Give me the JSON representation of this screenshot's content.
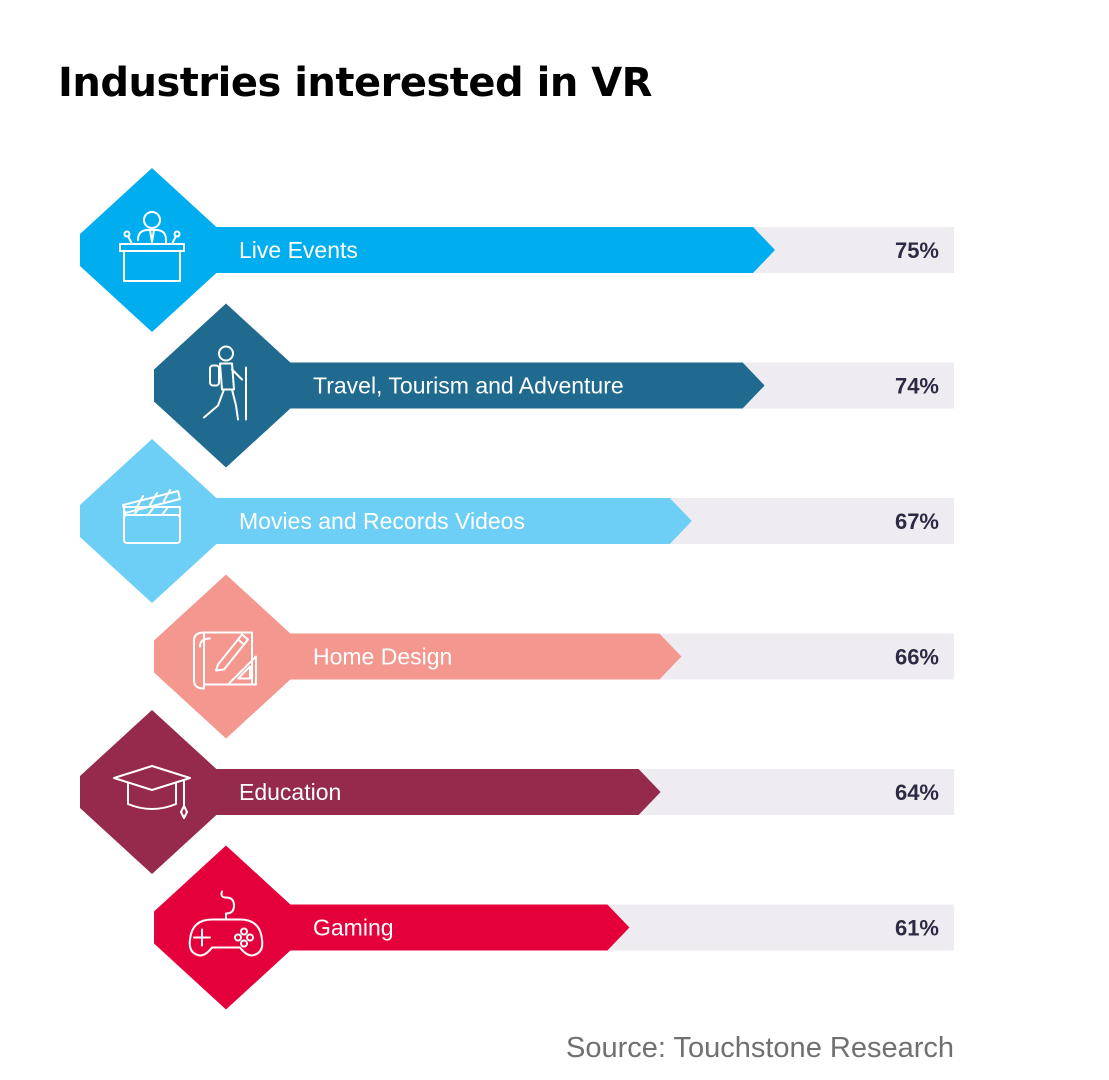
{
  "title": "Industries interested in VR",
  "source": "Source: Touchstone Research",
  "colors": {
    "track": "#eeecf0",
    "value_text": "#2e2a45",
    "label_text": "#ffffff",
    "icon_stroke": "#ffffff"
  },
  "chart_data": {
    "type": "bar",
    "orientation": "horizontal",
    "title": "Industries interested in VR",
    "xlim": [
      0,
      100
    ],
    "unit": "%",
    "categories": [
      "Live Events",
      "Travel, Tourism and Adventure",
      "Movies and Records Videos",
      "Home Design",
      "Education",
      "Gaming"
    ],
    "values": [
      75,
      74,
      67,
      66,
      64,
      61
    ],
    "value_labels": [
      "75%",
      "74%",
      "67%",
      "66%",
      "64%",
      "61%"
    ],
    "bar_colors": [
      "#00aeef",
      "#1f6a8e",
      "#6dcff6",
      "#f4978e",
      "#952a4d",
      "#e4003b"
    ],
    "icons": [
      "podium-speaker-icon",
      "hiker-icon",
      "clapperboard-icon",
      "blueprint-icon",
      "graduation-cap-icon",
      "gamepad-icon"
    ]
  }
}
